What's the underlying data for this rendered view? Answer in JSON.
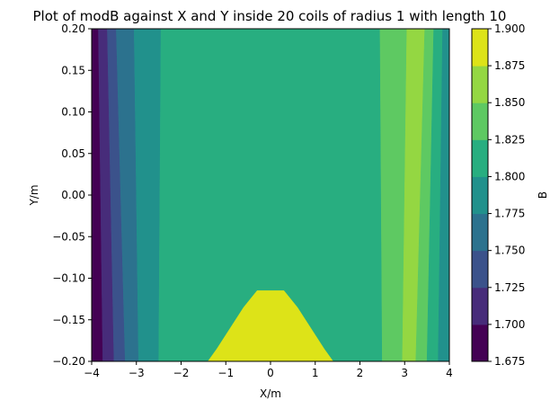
{
  "chart_data": {
    "type": "heatmap",
    "subtype": "filled-contour",
    "title": "Plot of modB against X and Y inside 20 coils of radius 1 with length 10",
    "xlabel": "X/m",
    "ylabel": "Y/m",
    "colorbar_label": "B",
    "xlim": [
      -4,
      4
    ],
    "ylim": [
      -0.2,
      0.2
    ],
    "xticks": [
      -4,
      -3,
      -2,
      -1,
      0,
      1,
      2,
      3,
      4
    ],
    "xtick_labels": [
      "−4",
      "−3",
      "−2",
      "−1",
      "0",
      "1",
      "2",
      "3",
      "4"
    ],
    "yticks": [
      -0.2,
      -0.15,
      -0.1,
      -0.05,
      0.0,
      0.05,
      0.1,
      0.15,
      0.2
    ],
    "ytick_labels": [
      "−0.20",
      "−0.15",
      "−0.10",
      "−0.05",
      "0.00",
      "0.05",
      "0.10",
      "0.15",
      "0.20"
    ],
    "levels": [
      1.675,
      1.7,
      1.725,
      1.75,
      1.775,
      1.8,
      1.825,
      1.85,
      1.875,
      1.9
    ],
    "level_labels": [
      "1.675",
      "1.700",
      "1.725",
      "1.750",
      "1.775",
      "1.800",
      "1.825",
      "1.850",
      "1.875",
      "1.900"
    ],
    "colormap": [
      "#440154",
      "#472c7a",
      "#3b528b",
      "#2c728e",
      "#21918c",
      "#28ae80",
      "#5ec962",
      "#94d742",
      "#dde318"
    ],
    "boundaries_x_at_top": [
      -3.85,
      -3.65,
      -3.45,
      -3.05,
      -2.45,
      2.45,
      3.05,
      3.45,
      3.65,
      3.85
    ],
    "boundaries_x_at_bottom": [
      -3.75,
      -3.5,
      -3.25,
      -2.95,
      -2.5,
      2.5,
      2.95,
      3.25,
      3.5,
      3.75
    ],
    "peak_region_value_range": [
      1.875,
      1.9
    ],
    "peak_region": {
      "x": [
        -1.4,
        -1.2,
        -0.9,
        -0.6,
        -0.3,
        0.3,
        0.6,
        0.9,
        1.2,
        1.4
      ],
      "y": [
        -0.2,
        -0.185,
        -0.16,
        -0.135,
        -0.115,
        -0.115,
        -0.135,
        -0.16,
        -0.185,
        -0.2
      ]
    }
  }
}
